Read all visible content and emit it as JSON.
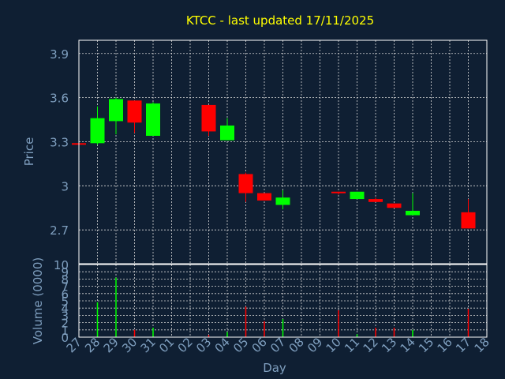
{
  "colors": {
    "background": "#0f1f33",
    "title": "#ffff00",
    "axis_text": "#7f9fbf",
    "frame": "#ffffff",
    "grid": "#d8d8d8",
    "up": "#00ff00",
    "down": "#ff0000"
  },
  "chart_data": {
    "type": "candlestick",
    "title": "KTCC - last updated 17/11/2025",
    "xlabel": "Day",
    "grid": true,
    "x_ticks": [
      "27",
      "28",
      "29",
      "30",
      "31",
      "01",
      "02",
      "03",
      "04",
      "05",
      "06",
      "07",
      "08",
      "09",
      "10",
      "11",
      "12",
      "13",
      "14",
      "15",
      "16",
      "17",
      "18"
    ],
    "price_panel": {
      "ylabel": "Price",
      "ylim": [
        2.47,
        3.99
      ],
      "y_ticks": [
        "3.9",
        "3.6",
        "3.3",
        "3",
        "2.7"
      ],
      "y_tick_values": [
        3.9,
        3.6,
        3.3,
        3.0,
        2.7
      ],
      "candles": [
        {
          "day": "27",
          "open": 3.29,
          "high": 3.29,
          "low": 3.27,
          "close": 3.28
        },
        {
          "day": "28",
          "open": 3.29,
          "high": 3.54,
          "low": 3.28,
          "close": 3.46
        },
        {
          "day": "29",
          "open": 3.44,
          "high": 3.6,
          "low": 3.35,
          "close": 3.59
        },
        {
          "day": "30",
          "open": 3.58,
          "high": 3.58,
          "low": 3.36,
          "close": 3.43
        },
        {
          "day": "31",
          "open": 3.34,
          "high": 3.57,
          "low": 3.34,
          "close": 3.56
        },
        {
          "day": "03",
          "open": 3.55,
          "high": 3.55,
          "low": 3.34,
          "close": 3.37
        },
        {
          "day": "04",
          "open": 3.31,
          "high": 3.46,
          "low": 3.31,
          "close": 3.41
        },
        {
          "day": "05",
          "open": 3.08,
          "high": 3.09,
          "low": 2.89,
          "close": 2.95
        },
        {
          "day": "06",
          "open": 2.95,
          "high": 2.95,
          "low": 2.9,
          "close": 2.9
        },
        {
          "day": "07",
          "open": 2.87,
          "high": 2.97,
          "low": 2.84,
          "close": 2.92
        },
        {
          "day": "10",
          "open": 2.96,
          "high": 2.96,
          "low": 2.94,
          "close": 2.95
        },
        {
          "day": "11",
          "open": 2.91,
          "high": 2.96,
          "low": 2.91,
          "close": 2.96
        },
        {
          "day": "12",
          "open": 2.91,
          "high": 2.92,
          "low": 2.89,
          "close": 2.89
        },
        {
          "day": "13",
          "open": 2.88,
          "high": 2.88,
          "low": 2.85,
          "close": 2.85
        },
        {
          "day": "14",
          "open": 2.8,
          "high": 2.95,
          "low": 2.8,
          "close": 2.83
        },
        {
          "day": "17",
          "open": 2.82,
          "high": 2.91,
          "low": 2.71,
          "close": 2.71
        }
      ]
    },
    "volume_panel": {
      "ylabel": "Volume (0000)",
      "ylim": [
        0,
        10
      ],
      "y_ticks": [
        "10",
        "9",
        "8",
        "7",
        "6",
        "5",
        "4",
        "3",
        "2",
        "1",
        "0"
      ],
      "y_tick_values": [
        10,
        9,
        8,
        7,
        6,
        5,
        4,
        3,
        2,
        1,
        0
      ],
      "y_grid_values": [
        9,
        8,
        7,
        6,
        5,
        4,
        3,
        2,
        1
      ],
      "bars": [
        {
          "day": "28",
          "value": 4.8,
          "dir": "up"
        },
        {
          "day": "29",
          "value": 8.2,
          "dir": "up"
        },
        {
          "day": "30",
          "value": 1.0,
          "dir": "down"
        },
        {
          "day": "31",
          "value": 1.3,
          "dir": "up"
        },
        {
          "day": "03",
          "value": 0.3,
          "dir": "down"
        },
        {
          "day": "04",
          "value": 0.7,
          "dir": "up"
        },
        {
          "day": "05",
          "value": 4.2,
          "dir": "down"
        },
        {
          "day": "06",
          "value": 2.2,
          "dir": "down"
        },
        {
          "day": "07",
          "value": 2.5,
          "dir": "up"
        },
        {
          "day": "10",
          "value": 3.7,
          "dir": "down"
        },
        {
          "day": "11",
          "value": 0.4,
          "dir": "up"
        },
        {
          "day": "12",
          "value": 1.3,
          "dir": "down"
        },
        {
          "day": "13",
          "value": 1.3,
          "dir": "down"
        },
        {
          "day": "14",
          "value": 1.0,
          "dir": "up"
        },
        {
          "day": "17",
          "value": 3.9,
          "dir": "down"
        }
      ]
    }
  }
}
